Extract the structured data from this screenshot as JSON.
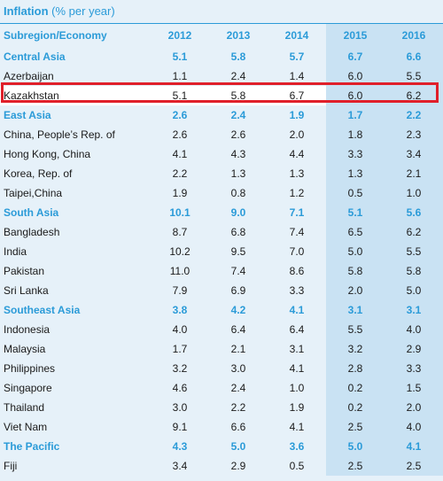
{
  "title": {
    "main": "Inflation",
    "unit": "(% per year)"
  },
  "header": {
    "col0": "Subregion/Economy",
    "years": [
      "2012",
      "2013",
      "2014",
      "2015",
      "2016"
    ]
  },
  "rows": [
    {
      "name": "Central Asia",
      "region": true,
      "values": [
        "5.1",
        "5.8",
        "5.7",
        "6.7",
        "6.6"
      ]
    },
    {
      "name": "Azerbaijan",
      "region": false,
      "values": [
        "1.1",
        "2.4",
        "1.4",
        "6.0",
        "5.5"
      ]
    },
    {
      "name": "Kazakhstan",
      "region": false,
      "highlight": true,
      "values": [
        "5.1",
        "5.8",
        "6.7",
        "6.0",
        "6.2"
      ]
    },
    {
      "name": "East Asia",
      "region": true,
      "values": [
        "2.6",
        "2.4",
        "1.9",
        "1.7",
        "2.2"
      ]
    },
    {
      "name": "China, People’s Rep. of",
      "region": false,
      "values": [
        "2.6",
        "2.6",
        "2.0",
        "1.8",
        "2.3"
      ]
    },
    {
      "name": "Hong Kong, China",
      "region": false,
      "values": [
        "4.1",
        "4.3",
        "4.4",
        "3.3",
        "3.4"
      ]
    },
    {
      "name": "Korea, Rep. of",
      "region": false,
      "values": [
        "2.2",
        "1.3",
        "1.3",
        "1.3",
        "2.1"
      ]
    },
    {
      "name": "Taipei,China",
      "region": false,
      "values": [
        "1.9",
        "0.8",
        "1.2",
        "0.5",
        "1.0"
      ]
    },
    {
      "name": "South Asia",
      "region": true,
      "values": [
        "10.1",
        "9.0",
        "7.1",
        "5.1",
        "5.6"
      ]
    },
    {
      "name": "Bangladesh",
      "region": false,
      "values": [
        "8.7",
        "6.8",
        "7.4",
        "6.5",
        "6.2"
      ]
    },
    {
      "name": "India",
      "region": false,
      "values": [
        "10.2",
        "9.5",
        "7.0",
        "5.0",
        "5.5"
      ]
    },
    {
      "name": "Pakistan",
      "region": false,
      "values": [
        "11.0",
        "7.4",
        "8.6",
        "5.8",
        "5.8"
      ]
    },
    {
      "name": "Sri Lanka",
      "region": false,
      "values": [
        "7.9",
        "6.9",
        "3.3",
        "2.0",
        "5.0"
      ]
    },
    {
      "name": "Southeast Asia",
      "region": true,
      "values": [
        "3.8",
        "4.2",
        "4.1",
        "3.1",
        "3.1"
      ]
    },
    {
      "name": "Indonesia",
      "region": false,
      "values": [
        "4.0",
        "6.4",
        "6.4",
        "5.5",
        "4.0"
      ]
    },
    {
      "name": "Malaysia",
      "region": false,
      "values": [
        "1.7",
        "2.1",
        "3.1",
        "3.2",
        "2.9"
      ]
    },
    {
      "name": "Philippines",
      "region": false,
      "values": [
        "3.2",
        "3.0",
        "4.1",
        "2.8",
        "3.3"
      ]
    },
    {
      "name": "Singapore",
      "region": false,
      "values": [
        "4.6",
        "2.4",
        "1.0",
        "0.2",
        "1.5"
      ]
    },
    {
      "name": "Thailand",
      "region": false,
      "values": [
        "3.0",
        "2.2",
        "1.9",
        "0.2",
        "2.0"
      ]
    },
    {
      "name": "Viet Nam",
      "region": false,
      "values": [
        "9.1",
        "6.6",
        "4.1",
        "2.5",
        "4.0"
      ]
    },
    {
      "name": "The Pacific",
      "region": true,
      "values": [
        "4.3",
        "5.0",
        "3.6",
        "5.0",
        "4.1"
      ]
    },
    {
      "name": "Fiji",
      "region": false,
      "values": [
        "3.4",
        "2.9",
        "0.5",
        "2.5",
        "2.5"
      ]
    }
  ],
  "colors": {
    "accent": "#2b9bd8",
    "projection_band": "#c9e2f3",
    "background": "#e6f1f9",
    "highlight_border": "#e0202a"
  }
}
